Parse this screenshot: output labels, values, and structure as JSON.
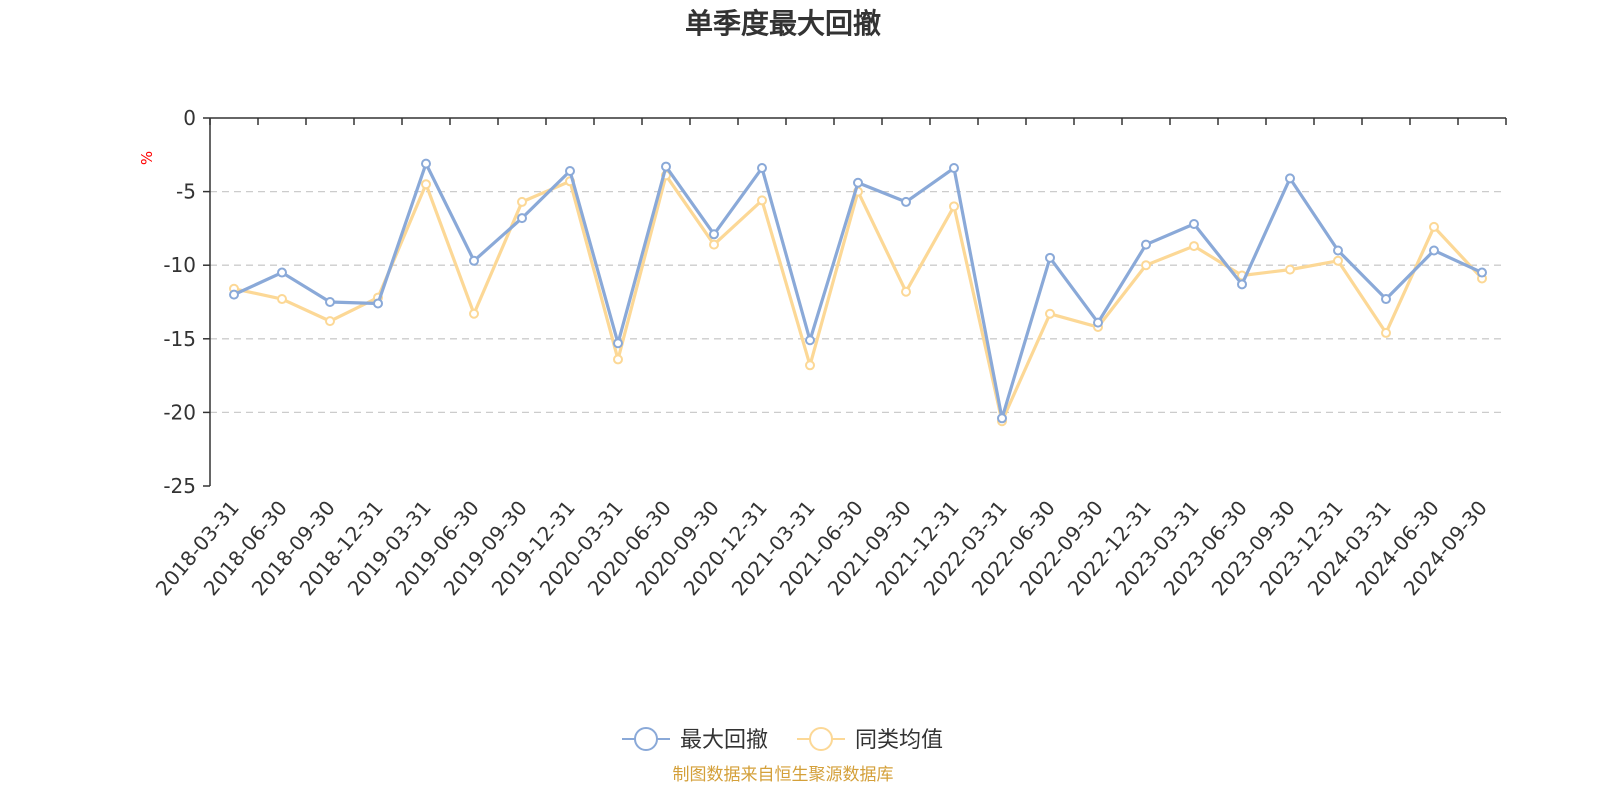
{
  "chart_data": {
    "type": "line",
    "title": "单季度最大回撤",
    "ylabel": "%",
    "ylim": [
      -25,
      0
    ],
    "yticks": [
      0,
      -5,
      -10,
      -15,
      -20,
      -25
    ],
    "grid": true,
    "legend_position": "bottom-center",
    "categories": [
      "2018-03-31",
      "2018-06-30",
      "2018-09-30",
      "2018-12-31",
      "2019-03-31",
      "2019-06-30",
      "2019-09-30",
      "2019-12-31",
      "2020-03-31",
      "2020-06-30",
      "2020-09-30",
      "2020-12-31",
      "2021-03-31",
      "2021-06-30",
      "2021-09-30",
      "2021-12-31",
      "2022-03-31",
      "2022-06-30",
      "2022-09-30",
      "2022-12-31",
      "2023-03-31",
      "2023-06-30",
      "2023-09-30",
      "2023-12-31",
      "2024-03-31",
      "2024-06-30",
      "2024-09-30"
    ],
    "series": [
      {
        "name": "最大回撤",
        "color": "#8aa9d8",
        "values": [
          -12.0,
          -10.5,
          -12.5,
          -12.6,
          -3.1,
          -9.7,
          -6.8,
          -3.6,
          -15.3,
          -3.3,
          -7.9,
          -3.4,
          -15.1,
          -4.4,
          -5.7,
          -3.4,
          -20.4,
          -9.5,
          -13.9,
          -8.6,
          -7.2,
          -11.3,
          -4.1,
          -9.0,
          -12.3,
          -9.0,
          -10.5
        ]
      },
      {
        "name": "同类均值",
        "color": "#fcd896",
        "values": [
          -11.6,
          -12.3,
          -13.8,
          -12.2,
          -4.5,
          -13.3,
          -5.7,
          -4.3,
          -16.4,
          -3.9,
          -8.6,
          -5.6,
          -16.8,
          -5.0,
          -11.8,
          -6.0,
          -20.6,
          -13.3,
          -14.2,
          -10.0,
          -8.7,
          -10.7,
          -10.3,
          -9.7,
          -14.6,
          -7.4,
          -10.9
        ]
      }
    ],
    "source_note": "制图数据来自恒生聚源数据库",
    "colors": {
      "axis": "#333333",
      "grid": "#cccccc",
      "unit": "#ff0000",
      "source": "#d4a03a"
    }
  }
}
